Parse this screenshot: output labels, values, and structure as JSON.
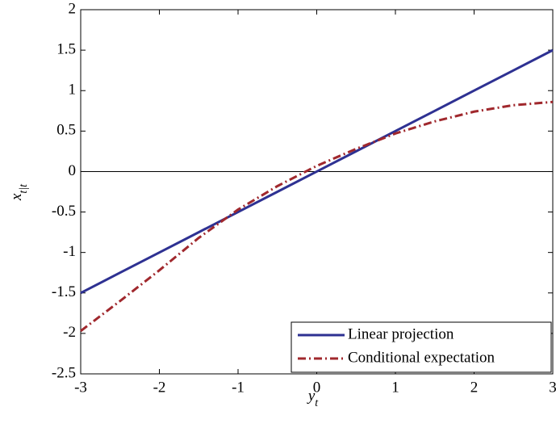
{
  "chart_data": {
    "type": "line",
    "x_label": "y",
    "x_label_sub": "t",
    "y_label": "x",
    "y_label_sub": "t|t",
    "x": [
      -3,
      -2.5,
      -2,
      -1.5,
      -1,
      -0.5,
      0,
      0.5,
      1,
      1.5,
      2,
      2.5,
      3
    ],
    "series": [
      {
        "name": "Linear projection",
        "color": "#2e3192",
        "dash": "solid",
        "values": [
          -1.5,
          -1.25,
          -1,
          -0.75,
          -0.5,
          -0.25,
          0,
          0.25,
          0.5,
          0.75,
          1,
          1.25,
          1.5
        ]
      },
      {
        "name": "Conditional expectation",
        "color": "#a0282d",
        "dash": "dashdot",
        "values": [
          -1.97,
          -1.6,
          -1.22,
          -0.82,
          -0.47,
          -0.18,
          0.07,
          0.28,
          0.47,
          0.62,
          0.74,
          0.82,
          0.86
        ]
      }
    ],
    "xlim": [
      -3,
      3
    ],
    "xticks": [
      -3,
      -2,
      -1,
      0,
      1,
      2,
      3
    ],
    "ylim": [
      -2.5,
      2
    ],
    "yticks": [
      -2.5,
      -2,
      -1.5,
      -1,
      -0.5,
      0,
      0.5,
      1,
      1.5,
      2
    ],
    "hline": 0,
    "legend": "lower-right"
  }
}
